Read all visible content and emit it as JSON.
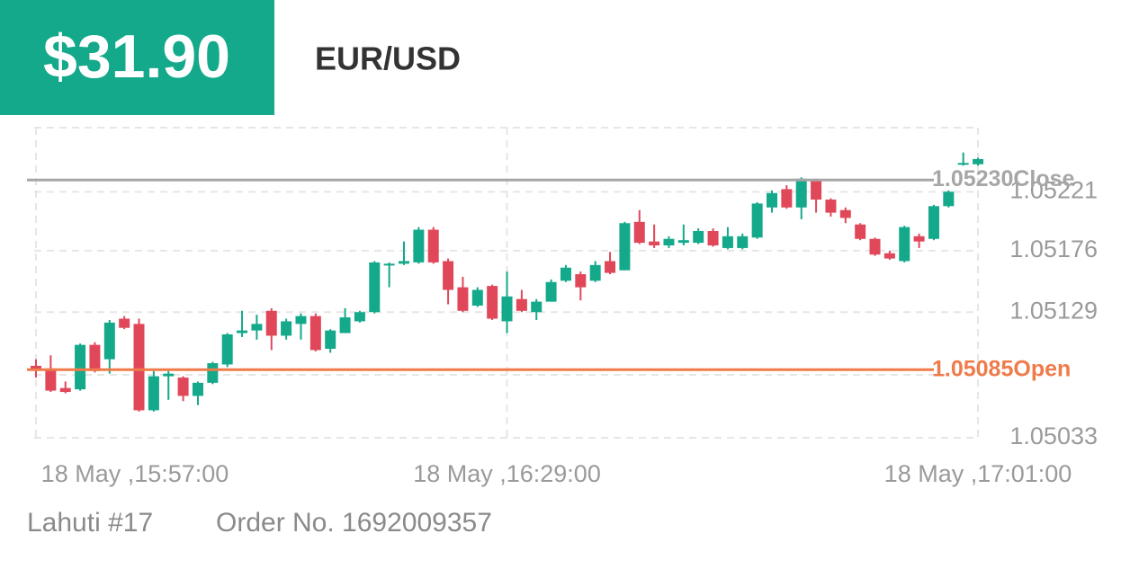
{
  "header": {
    "profit": "$31.90",
    "symbol": "EUR/USD"
  },
  "chart_data": {
    "type": "candlestick",
    "categories": [
      "18 May ,15:57:00",
      null,
      null,
      null,
      null,
      null,
      null,
      null,
      null,
      null,
      null,
      null,
      null,
      null,
      null,
      null,
      null,
      null,
      null,
      null,
      null,
      null,
      null,
      null,
      null,
      null,
      null,
      null,
      null,
      null,
      null,
      null,
      "18 May ,16:29:00",
      null,
      null,
      null,
      null,
      null,
      null,
      null,
      null,
      null,
      null,
      null,
      null,
      null,
      null,
      null,
      null,
      null,
      null,
      null,
      null,
      null,
      null,
      null,
      null,
      null,
      null,
      null,
      null,
      null,
      null,
      null,
      "18 May ,17:01:00"
    ],
    "open": [
      1.05088,
      1.05086,
      1.05071,
      1.0507,
      1.05104,
      1.05093,
      1.05124,
      1.0512,
      1.05054,
      1.0508,
      1.05079,
      1.05065,
      1.05075,
      1.05089,
      1.05113,
      1.05115,
      1.0513,
      1.05111,
      1.0512,
      1.05126,
      1.05101,
      1.05113,
      1.05122,
      1.05129,
      1.05165,
      1.05166,
      1.05167,
      1.05192,
      1.05168,
      1.05148,
      1.05134,
      1.05149,
      1.05122,
      1.05139,
      1.05129,
      1.05137,
      1.05153,
      1.05158,
      1.05153,
      1.05168,
      1.05161,
      1.05198,
      1.05183,
      1.0518,
      1.05182,
      1.05182,
      1.05191,
      1.05178,
      1.05178,
      1.05186,
      1.05209,
      1.05223,
      1.05209,
      1.0523,
      1.05215,
      1.05207,
      1.05196,
      1.05185,
      1.05174,
      1.05168,
      1.05187,
      1.05185,
      1.0521,
      1.05242,
      1.05242
    ],
    "high": [
      1.05093,
      1.05096,
      1.05076,
      1.05105,
      1.05106,
      1.05123,
      1.05126,
      1.05124,
      1.05084,
      1.05084,
      1.0508,
      1.05076,
      1.05091,
      1.05113,
      1.0513,
      1.05127,
      1.05132,
      1.05124,
      1.05128,
      1.05128,
      1.05116,
      1.05132,
      1.0513,
      1.05168,
      1.05167,
      1.05183,
      1.05194,
      1.05194,
      1.0517,
      1.05156,
      1.05148,
      1.0515,
      1.0516,
      1.05146,
      1.05139,
      1.05154,
      1.05165,
      1.0516,
      1.05168,
      1.05175,
      1.05198,
      1.05207,
      1.05196,
      1.05187,
      1.05196,
      1.05193,
      1.05193,
      1.05194,
      1.05189,
      1.05213,
      1.05222,
      1.05226,
      1.05232,
      1.05231,
      1.05216,
      1.05209,
      1.05197,
      1.05186,
      1.05176,
      1.05195,
      1.05189,
      1.05211,
      1.05222,
      1.05251,
      1.05247
    ],
    "low": [
      1.05079,
      1.05068,
      1.05067,
      1.05069,
      1.05083,
      1.05082,
      1.05116,
      1.05053,
      1.05053,
      1.05062,
      1.05061,
      1.05058,
      1.05074,
      1.05087,
      1.0511,
      1.05108,
      1.051,
      1.05108,
      1.05108,
      1.05099,
      1.05098,
      1.05113,
      1.05121,
      1.05128,
      1.05148,
      1.05165,
      1.05166,
      1.05166,
      1.05135,
      1.05129,
      1.05133,
      1.05123,
      1.05113,
      1.05129,
      1.05123,
      1.05137,
      1.05152,
      1.05138,
      1.05152,
      1.05158,
      1.05161,
      1.05181,
      1.05178,
      1.05178,
      1.0518,
      1.05181,
      1.05179,
      1.05177,
      1.05177,
      1.05185,
      1.05205,
      1.05208,
      1.052,
      1.05205,
      1.05202,
      1.05197,
      1.05184,
      1.05172,
      1.05169,
      1.05167,
      1.05178,
      1.05184,
      1.05209,
      1.05241,
      1.05241
    ],
    "close": [
      1.05085,
      1.05069,
      1.05068,
      1.05104,
      1.05084,
      1.05121,
      1.05117,
      1.05054,
      1.0508,
      1.05082,
      1.05065,
      1.05075,
      1.0509,
      1.05112,
      1.05115,
      1.0512,
      1.05111,
      1.05122,
      1.05126,
      1.051,
      1.05115,
      1.05125,
      1.05129,
      1.05167,
      1.05166,
      1.05168,
      1.05192,
      1.05167,
      1.05146,
      1.0513,
      1.05146,
      1.05124,
      1.05141,
      1.0513,
      1.05137,
      1.05152,
      1.05163,
      1.05148,
      1.05165,
      1.05159,
      1.05197,
      1.05182,
      1.0518,
      1.05185,
      1.05184,
      1.05191,
      1.0518,
      1.05187,
      1.05187,
      1.05212,
      1.0522,
      1.05209,
      1.05231,
      1.05215,
      1.05205,
      1.05201,
      1.05185,
      1.05173,
      1.0517,
      1.05194,
      1.05183,
      1.0521,
      1.05221,
      1.05243,
      1.05246
    ],
    "up_color": "#14a98b",
    "down_color": "#e0485a",
    "ylim": [
      1.05033,
      1.0527
    ],
    "yticks": [
      1.05033,
      1.05129,
      1.05176,
      1.05221
    ],
    "grid": true,
    "levels": [
      {
        "name": "Close",
        "value": 1.0523,
        "label": "1.05230",
        "color": "#a6a6a6"
      },
      {
        "name": "Open",
        "value": 1.05085,
        "color": "#f07b4a"
      }
    ]
  },
  "footer": {
    "account": "Lahuti #17",
    "order": "Order No. 1692009357"
  }
}
